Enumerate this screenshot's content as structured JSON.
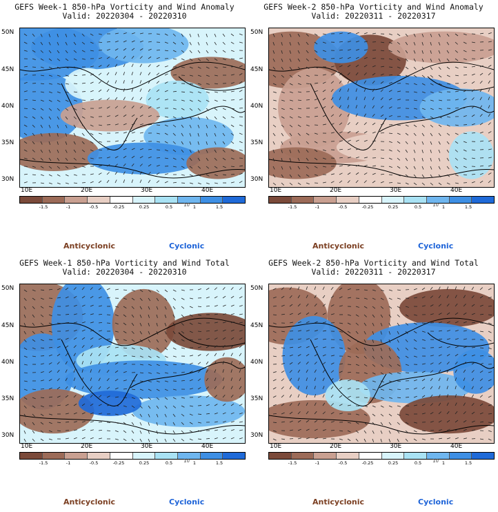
{
  "colors": {
    "brown_dark": "#7b4a3a",
    "brown_mid": "#9c6b58",
    "brown_light": "#c9a091",
    "tan": "#e8cfc4",
    "white": "#ffffff",
    "cyan_light": "#d8f4fb",
    "cyan": "#a9e2f4",
    "blue_light": "#6fb6ef",
    "blue": "#3e8fe4",
    "blue_dark": "#1f6ad8",
    "anticyclonic": "#7b3f22",
    "cyclonic": "#1d63d8"
  },
  "colorbar_ticks": [
    "-1.5",
    "-1",
    "-0.5",
    "-0.25",
    "0.25",
    "0.5",
    "1",
    "1.5"
  ],
  "colorbar_unit": "10",
  "lat_labels": [
    "50N",
    "45N",
    "40N",
    "35N",
    "30N"
  ],
  "lon_labels": [
    "10E",
    "20E",
    "30E",
    "40E"
  ],
  "legend": {
    "anticyclonic": "Anticyclonic",
    "cyclonic": "Cyclonic"
  },
  "panels": [
    {
      "title": "GEFS Week-1 850-hPa Vorticity and Wind Anomaly",
      "valid": "Valid: 20220304 - 20220310"
    },
    {
      "title": "GEFS Week-2 850-hPa Vorticity and Wind Anomaly",
      "valid": "Valid: 20220311 - 20220317"
    },
    {
      "title": "GEFS Week-1 850-hPa Vorticity and Wind Total",
      "valid": "Valid: 20220304 - 20220310"
    },
    {
      "title": "GEFS Week-2 850-hPa Vorticity and Wind Total",
      "valid": "Valid: 20220311 - 20220317"
    }
  ]
}
